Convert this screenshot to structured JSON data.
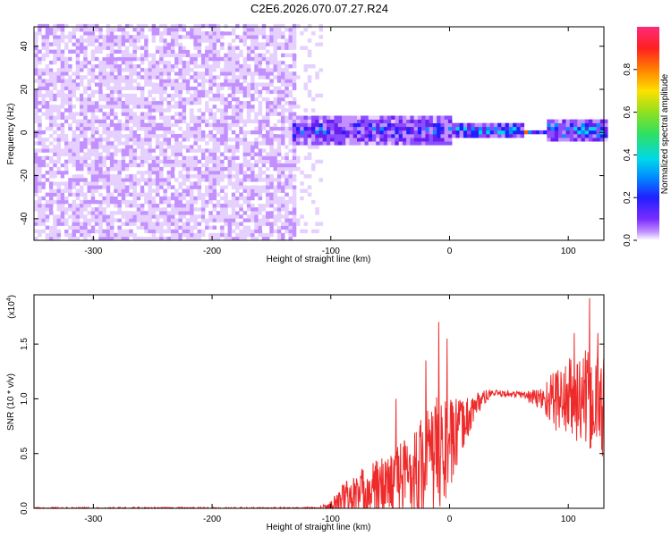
{
  "title": "C2E6.2026.070.07.27.R24",
  "chart_data": [
    {
      "type": "heatmap",
      "name": "spectrogram",
      "xlabel": "Height of straight line (km)",
      "ylabel": "Frequency (Hz)",
      "xlim": [
        -350,
        130
      ],
      "ylim": [
        -50,
        49
      ],
      "x_ticks": [
        -300,
        -200,
        -100,
        0,
        100
      ],
      "x_tick_labels": [
        "-300",
        "-200",
        "-100",
        "0",
        "100"
      ],
      "y_ticks": [
        -40,
        -20,
        0,
        20,
        40
      ],
      "y_tick_labels": [
        "-40",
        "-20",
        "0",
        "20",
        "40"
      ],
      "colorbar": {
        "label": "Normalized spectral amplitude",
        "range": [
          0,
          1
        ],
        "ticks": [
          0.0,
          0.2,
          0.4,
          0.6,
          0.8
        ],
        "tick_labels": [
          "0.0",
          "0.2",
          "0.4",
          "0.6",
          "0.8"
        ]
      },
      "regions": [
        {
          "x_from": -350,
          "x_to": -130,
          "description": "noise across full band",
          "f_half_width": 50,
          "amplitude": 0.12
        },
        {
          "x_from": -130,
          "x_to": -110,
          "description": "sparse noise",
          "f_half_width": 50,
          "amplitude": 0.05
        },
        {
          "x_from": -133,
          "x_to": 0,
          "description": "signal band",
          "f_half_width": 7,
          "amplitude": 0.4
        },
        {
          "x_from": 0,
          "x_to": 60,
          "description": "narrowing signal band",
          "f_half_width": 3,
          "amplitude": 0.55
        },
        {
          "x_from": 50,
          "x_to": 80,
          "description": "peak signal",
          "f_half_width": 1,
          "amplitude": 0.95
        },
        {
          "x_from": 80,
          "x_to": 130,
          "description": "signal band",
          "f_half_width": 5,
          "amplitude": 0.5
        }
      ],
      "palette": [
        "#ffffff",
        "#e5d0ff",
        "#c390ff",
        "#8c4cff",
        "#6a1ef0",
        "#2020ff",
        "#0090ff",
        "#00d8e8",
        "#40e070",
        "#a0e030",
        "#ffd000",
        "#ff6000",
        "#ff2020",
        "#ff2080"
      ]
    },
    {
      "type": "line",
      "name": "snr",
      "xlabel": "Height of straight line (km)",
      "ylabel": "SNR (10 * v/v)",
      "y_multiplier": "(x10",
      "y_multiplier_exp": "4",
      "y_multiplier_close": ")",
      "xlim": [
        -350,
        130
      ],
      "ylim": [
        0,
        1.95
      ],
      "x_ticks": [
        -300,
        -200,
        -100,
        0,
        100
      ],
      "x_tick_labels": [
        "-300",
        "-200",
        "-100",
        "0",
        "100"
      ],
      "y_ticks": [
        0.0,
        0.5,
        1.0,
        1.5
      ],
      "y_tick_labels": [
        "0.0",
        "0.5",
        "1.0",
        "1.5"
      ],
      "color": "#ee2a2a",
      "series": [
        {
          "name": "SNR",
          "envelope": [
            {
              "x": -350,
              "base": 0.0,
              "noise": 0.01
            },
            {
              "x": -110,
              "base": 0.0,
              "noise": 0.01
            },
            {
              "x": -100,
              "base": 0.02,
              "noise": 0.05
            },
            {
              "x": -90,
              "base": 0.06,
              "noise": 0.18
            },
            {
              "x": -70,
              "base": 0.15,
              "noise": 0.25
            },
            {
              "x": -50,
              "base": 0.22,
              "noise": 0.3
            },
            {
              "x": -30,
              "base": 0.35,
              "noise": 0.4
            },
            {
              "x": -10,
              "base": 0.5,
              "noise": 0.55
            },
            {
              "x": 0,
              "base": 0.55,
              "noise": 0.45
            },
            {
              "x": 10,
              "base": 0.75,
              "noise": 0.25
            },
            {
              "x": 25,
              "base": 0.98,
              "noise": 0.1
            },
            {
              "x": 35,
              "base": 1.05,
              "noise": 0.03
            },
            {
              "x": 60,
              "base": 1.04,
              "noise": 0.03
            },
            {
              "x": 75,
              "base": 1.0,
              "noise": 0.1
            },
            {
              "x": 90,
              "base": 1.0,
              "noise": 0.3
            },
            {
              "x": 110,
              "base": 1.0,
              "noise": 0.45
            },
            {
              "x": 130,
              "base": 0.95,
              "noise": 0.5
            }
          ],
          "spikes": [
            {
              "x": -9,
              "y": 1.7
            },
            {
              "x": -20,
              "y": 1.35
            },
            {
              "x": -45,
              "y": 1.0
            },
            {
              "x": -2,
              "y": 1.55
            },
            {
              "x": 118,
              "y": 1.92
            },
            {
              "x": 105,
              "y": 1.6
            },
            {
              "x": 125,
              "y": 1.6
            }
          ]
        }
      ]
    }
  ]
}
